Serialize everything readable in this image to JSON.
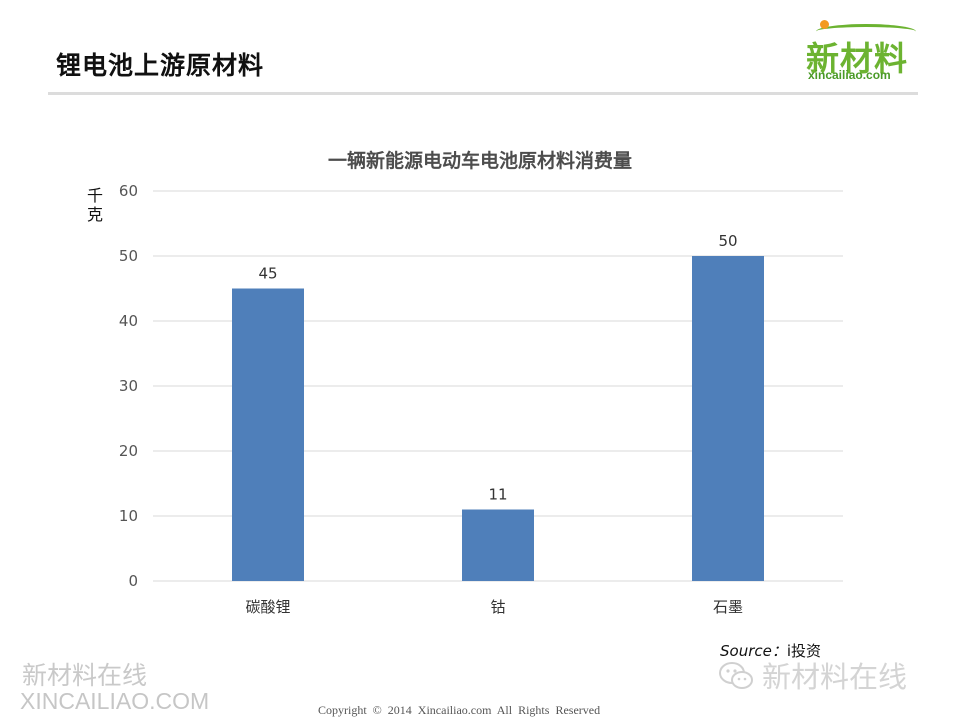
{
  "page": {
    "title": "锂电池上游原材料"
  },
  "logo": {
    "cn": "新材料",
    "en": "xincailiao.com"
  },
  "chart_data": {
    "type": "bar",
    "title": "一辆新能源电动车电池原材料消费量",
    "ylabel": "千克",
    "xlabel": "",
    "categories": [
      "碳酸锂",
      "钴",
      "石墨"
    ],
    "values": [
      45,
      11,
      50
    ],
    "data_labels": [
      "45",
      "11",
      "50"
    ],
    "ylim": [
      0,
      60
    ],
    "yticks": [
      0,
      10,
      20,
      30,
      40,
      50,
      60
    ],
    "grid": true,
    "legend": "none",
    "bar_color": "#4f7fba",
    "grid_color": "#d9d9d9"
  },
  "source": {
    "label": "Source：",
    "value": "i投资"
  },
  "watermarks": {
    "left_line1": "新材料在线",
    "left_line2": "XINCAILIAO.COM",
    "right": "新材料在线"
  },
  "footer": {
    "copyright": "Copyright © 2014   Xincailiao.com   All Rights Reserved"
  }
}
